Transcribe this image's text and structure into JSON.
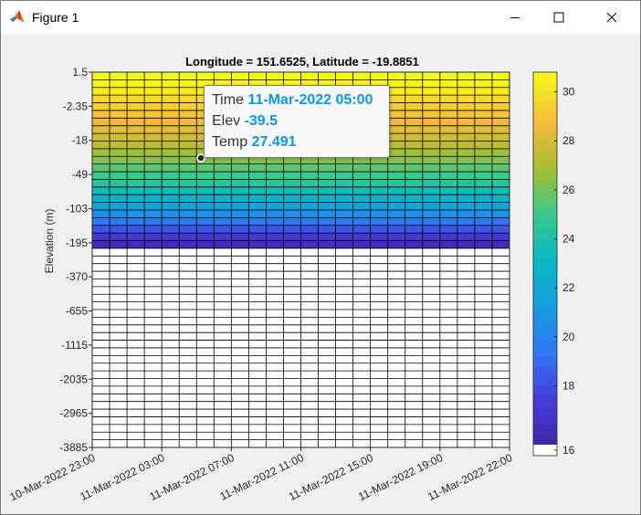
{
  "window": {
    "title": "Figure 1",
    "icons": {
      "app": "matlab-logo-icon",
      "minimize": "minimize-icon",
      "maximize": "maximize-icon",
      "close": "close-icon"
    }
  },
  "figure": {
    "title": "Longitude = 151.6525, Latitude = -19.8851",
    "ylabel": "Elevation (m)"
  },
  "datatip": {
    "time_label": "Time",
    "time_value": "11-Mar-2022 05:00",
    "elev_label": "Elev",
    "elev_value": "-39.5",
    "temp_label": "Temp",
    "temp_value": "27.491"
  },
  "chart_data": {
    "type": "heatmap",
    "title": "Longitude = 151.6525, Latitude = -19.8851",
    "xlabel": "",
    "ylabel": "Elevation (m)",
    "x_tick_labels": [
      "10-Mar-2022 23:00",
      "11-Mar-2022 03:00",
      "11-Mar-2022 07:00",
      "11-Mar-2022 11:00",
      "11-Mar-2022 15:00",
      "11-Mar-2022 19:00",
      "11-Mar-2022 22:00"
    ],
    "y_tick_labels": [
      "1.5",
      "-2.35",
      "-18",
      "-49",
      "-103",
      "-195",
      "-370",
      "-655",
      "-1115",
      "-2035",
      "-2965",
      "-3885"
    ],
    "time_steps": 24,
    "time_range": [
      "10-Mar-2022 23:00",
      "11-Mar-2022 22:00"
    ],
    "grid": true,
    "colormap": "parula",
    "colorbar": {
      "location": "right",
      "ticks": [
        16,
        18,
        20,
        22,
        24,
        26,
        28,
        30
      ],
      "range": [
        15.6,
        30.8
      ]
    },
    "layer_temperatures": [
      30.8,
      30.6,
      30.2,
      29.8,
      29.4,
      29.0,
      28.6,
      28.2,
      27.8,
      27.4,
      26.8,
      26.2,
      25.6,
      25.0,
      24.4,
      23.6,
      22.8,
      21.8,
      20.6,
      19.4,
      18.2,
      17.0,
      16.2
    ],
    "empty_layers_below": 26
  }
}
